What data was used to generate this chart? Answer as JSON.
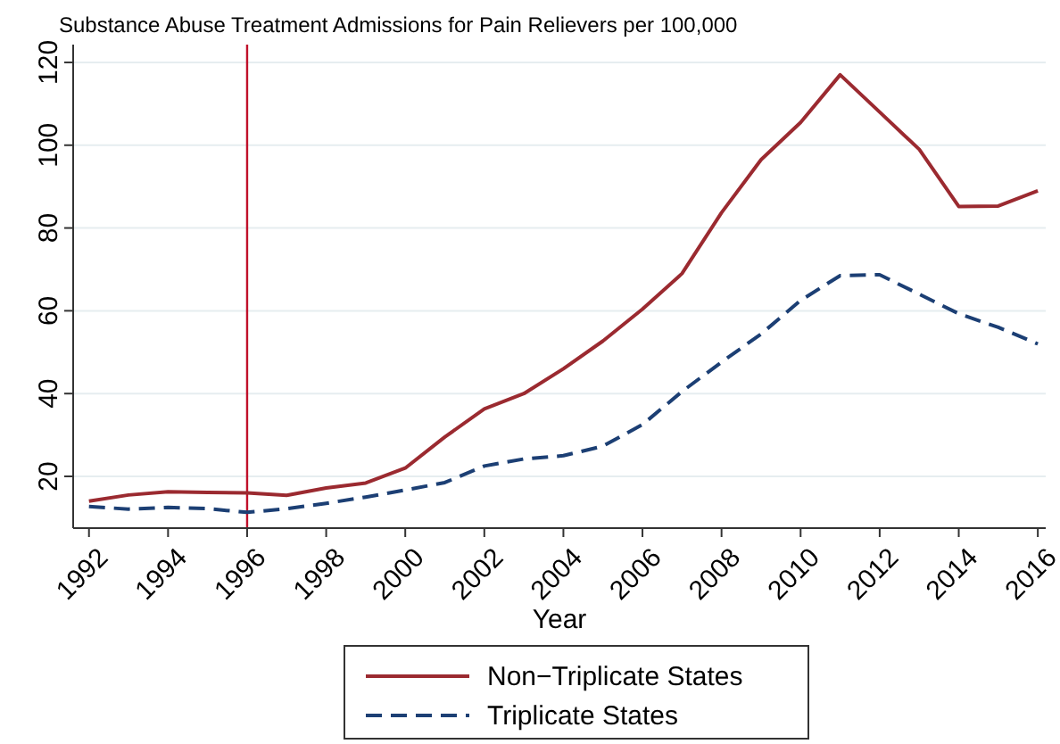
{
  "chart_data": {
    "type": "line",
    "title": "Substance Abuse Treatment Admissions for Pain Relievers per 100,000",
    "xlabel": "Year",
    "x": [
      1992,
      1993,
      1994,
      1995,
      1996,
      1997,
      1998,
      1999,
      2000,
      2001,
      2002,
      2003,
      2004,
      2005,
      2006,
      2007,
      2008,
      2009,
      2010,
      2011,
      2012,
      2013,
      2014,
      2015,
      2016
    ],
    "series": [
      {
        "name": "Non−Triplicate States",
        "color": "#9b2a30",
        "line_style": "solid",
        "values": [
          14,
          15.5,
          16.3,
          16.1,
          16,
          15.4,
          17.2,
          18.4,
          22,
          29.5,
          36.3,
          40,
          46,
          52.7,
          60.4,
          69,
          83.7,
          96.5,
          105.5,
          117,
          108,
          99,
          85.2,
          85.3,
          89
        ]
      },
      {
        "name": "Triplicate States",
        "color": "#1c3f74",
        "line_style": "dashed",
        "values": [
          12.7,
          12.1,
          12.5,
          12.2,
          11.3,
          12.2,
          13.5,
          15,
          16.7,
          18.5,
          22.5,
          24.2,
          25,
          27.3,
          32.5,
          40.5,
          47.6,
          54.4,
          62.5,
          68.5,
          68.7,
          64,
          59.3,
          56,
          52
        ]
      }
    ],
    "xlim": [
      1991.6,
      2016.2
    ],
    "xticks": [
      1992,
      1994,
      1996,
      1998,
      2000,
      2002,
      2004,
      2006,
      2008,
      2010,
      2012,
      2014,
      2016
    ],
    "ylim": [
      7.5,
      124.3
    ],
    "yticks": [
      20,
      40,
      60,
      80,
      100,
      120
    ],
    "grid": "y",
    "legend": "bottom",
    "ref_lines": [
      {
        "axis": "x",
        "value": 1996,
        "color": "#c0102a"
      }
    ]
  }
}
